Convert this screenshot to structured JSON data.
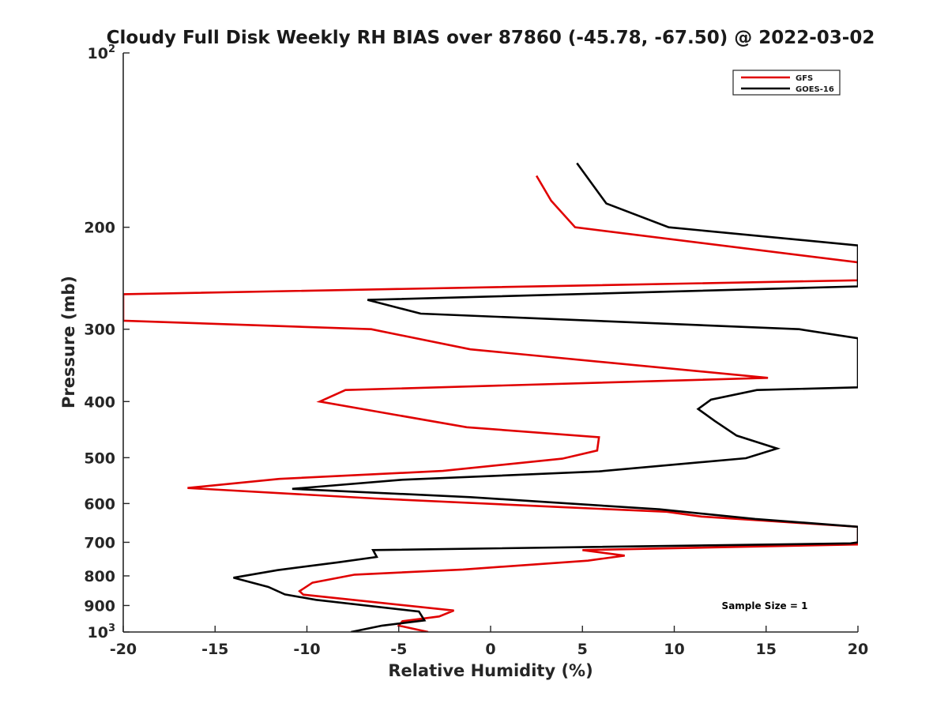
{
  "chart_data": {
    "type": "line",
    "title": "Cloudy Full Disk Weekly RH BIAS over 87860 (-45.78, -67.50) @ 2022-03-02",
    "xlabel": "Relative Humidity (%)",
    "ylabel": "Pressure (mb)",
    "xlim": [
      -20,
      20
    ],
    "ylim": [
      100,
      1000
    ],
    "y_scale": "log",
    "y_reversed": true,
    "grid": false,
    "legend_position": "top-right",
    "x_ticks": [
      -20,
      -15,
      -10,
      -5,
      0,
      5,
      10,
      15,
      20
    ],
    "y_ticks": [
      {
        "value": 100,
        "label": "10",
        "sup": "2"
      },
      {
        "value": 200,
        "label": "200",
        "sup": ""
      },
      {
        "value": 300,
        "label": "300",
        "sup": ""
      },
      {
        "value": 400,
        "label": "400",
        "sup": ""
      },
      {
        "value": 500,
        "label": "500",
        "sup": ""
      },
      {
        "value": 600,
        "label": "600",
        "sup": ""
      },
      {
        "value": 700,
        "label": "700",
        "sup": ""
      },
      {
        "value": 800,
        "label": "800",
        "sup": ""
      },
      {
        "value": 900,
        "label": "900",
        "sup": ""
      },
      {
        "value": 1000,
        "label": "10",
        "sup": "3"
      }
    ],
    "annotation": "Sample Size = 1",
    "series": [
      {
        "name": "GFS",
        "color": "#e00000",
        "points": [
          [
            2.5,
            163
          ],
          [
            3.3,
            180
          ],
          [
            4.6,
            200
          ],
          [
            20,
            230
          ],
          [
            20,
            247
          ],
          [
            -20,
            261
          ],
          [
            -20,
            290
          ],
          [
            -6.5,
            300
          ],
          [
            -1.1,
            325
          ],
          [
            15.1,
            364
          ],
          [
            -7.9,
            382
          ],
          [
            -9.3,
            400
          ],
          [
            -5.3,
            421
          ],
          [
            -1.3,
            443
          ],
          [
            5.9,
            461
          ],
          [
            5.8,
            486
          ],
          [
            3.9,
            502
          ],
          [
            -2.6,
            527
          ],
          [
            -11.5,
            544
          ],
          [
            -16.5,
            564
          ],
          [
            -6.3,
            588
          ],
          [
            4.0,
            609
          ],
          [
            9.6,
            620
          ],
          [
            11.5,
            632
          ],
          [
            14.5,
            641
          ],
          [
            20,
            658
          ],
          [
            20,
            706
          ],
          [
            5.0,
            722
          ],
          [
            7.3,
            738
          ],
          [
            5.3,
            753
          ],
          [
            -1.5,
            780
          ],
          [
            -7.4,
            796
          ],
          [
            -9.7,
            822
          ],
          [
            -10.4,
            850
          ],
          [
            -10.2,
            862
          ],
          [
            -2.0,
            918
          ],
          [
            -2.8,
            940
          ],
          [
            -4.8,
            958
          ],
          [
            -5.0,
            975
          ],
          [
            -3.4,
            1000
          ]
        ]
      },
      {
        "name": "GOES-16",
        "color": "#000000",
        "points": [
          [
            4.7,
            155
          ],
          [
            6.3,
            182
          ],
          [
            9.7,
            200
          ],
          [
            20,
            215
          ],
          [
            20,
            253
          ],
          [
            -6.7,
            267
          ],
          [
            -3.8,
            282
          ],
          [
            16.8,
            300
          ],
          [
            20,
            311
          ],
          [
            20,
            378
          ],
          [
            14.5,
            382
          ],
          [
            12.0,
            397
          ],
          [
            11.3,
            412
          ],
          [
            12.2,
            432
          ],
          [
            13.4,
            458
          ],
          [
            15.6,
            482
          ],
          [
            13.9,
            501
          ],
          [
            5.9,
            528
          ],
          [
            -4.9,
            546
          ],
          [
            -10.8,
            566
          ],
          [
            -1.1,
            585
          ],
          [
            9.2,
            614
          ],
          [
            14.4,
            638
          ],
          [
            20,
            658
          ],
          [
            20,
            700
          ],
          [
            19.6,
            703
          ],
          [
            -6.4,
            722
          ],
          [
            -6.2,
            742
          ],
          [
            -8.3,
            758
          ],
          [
            -11.6,
            782
          ],
          [
            -14.0,
            806
          ],
          [
            -12.1,
            836
          ],
          [
            -11.2,
            861
          ],
          [
            -9.5,
            880
          ],
          [
            -3.9,
            922
          ],
          [
            -3.6,
            955
          ],
          [
            -5.9,
            975
          ],
          [
            -7.6,
            1000
          ]
        ]
      }
    ]
  }
}
